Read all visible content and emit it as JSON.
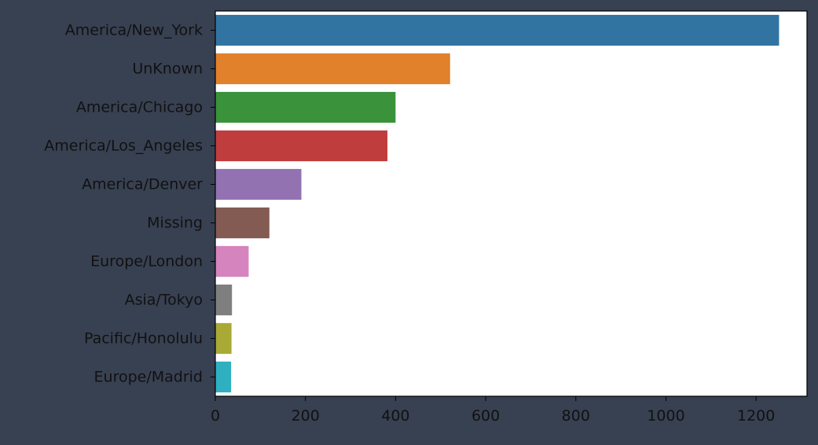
{
  "chart_data": {
    "type": "bar",
    "orientation": "horizontal",
    "categories": [
      "America/New_York",
      "UnKnown",
      "America/Chicago",
      "America/Los_Angeles",
      "America/Denver",
      "Missing",
      "Europe/London",
      "Asia/Tokyo",
      "Pacific/Honolulu",
      "Europe/Madrid"
    ],
    "values": [
      1251,
      521,
      400,
      382,
      191,
      120,
      74,
      37,
      36,
      35
    ],
    "colors": [
      "#3274a1",
      "#e1812c",
      "#3a923a",
      "#c03d3e",
      "#9372b2",
      "#845b53",
      "#d684bd",
      "#7f7f7f",
      "#a9aa35",
      "#2eb0c1"
    ],
    "xticks": [
      0,
      200,
      400,
      600,
      800,
      1000,
      1200
    ],
    "xlim": [
      0,
      1313
    ],
    "title": "",
    "xlabel": "",
    "ylabel": "",
    "grid": false,
    "background": "#384152",
    "plot_background": "#ffffff"
  }
}
